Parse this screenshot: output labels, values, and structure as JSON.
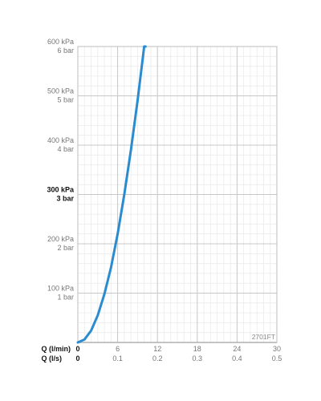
{
  "chart_data": {
    "type": "line",
    "title": "",
    "code_label": "2701FT",
    "y_axis": {
      "range_kpa": [
        0,
        600
      ],
      "ticks": [
        {
          "value": 100,
          "label_kpa": "100 kPa",
          "label_bar": "1 bar",
          "bold": false
        },
        {
          "value": 200,
          "label_kpa": "200 kPa",
          "label_bar": "2 bar",
          "bold": false
        },
        {
          "value": 300,
          "label_kpa": "300 kPa",
          "label_bar": "3 bar",
          "bold": true
        },
        {
          "value": 400,
          "label_kpa": "400 kPa",
          "label_bar": "4 bar",
          "bold": false
        },
        {
          "value": 500,
          "label_kpa": "500 kPa",
          "label_bar": "5 bar",
          "bold": false
        },
        {
          "value": 600,
          "label_kpa": "600 kPa",
          "label_bar": "6 bar",
          "bold": false
        }
      ]
    },
    "x_axis": {
      "range_lmin": [
        0,
        30
      ],
      "primary_label": "Q (l/min)",
      "secondary_label": "Q (l/s)",
      "ticks": [
        {
          "value": 0,
          "label": "0",
          "label_ls": "0"
        },
        {
          "value": 6,
          "label": "6",
          "label_ls": "0.1"
        },
        {
          "value": 12,
          "label": "12",
          "label_ls": "0.2"
        },
        {
          "value": 18,
          "label": "18",
          "label_ls": "0.3"
        },
        {
          "value": 24,
          "label": "24",
          "label_ls": "0.4"
        },
        {
          "value": 30,
          "label": "30",
          "label_ls": "0.5"
        }
      ]
    },
    "grid": true,
    "series": [
      {
        "color": "#2a8ccf",
        "x": [
          0,
          1,
          2,
          3,
          4,
          5,
          6,
          7,
          8,
          9,
          10,
          10.2
        ],
        "y": [
          0,
          6,
          24,
          55,
          98,
          152,
          220,
          300,
          390,
          490,
          600,
          600
        ]
      }
    ]
  }
}
